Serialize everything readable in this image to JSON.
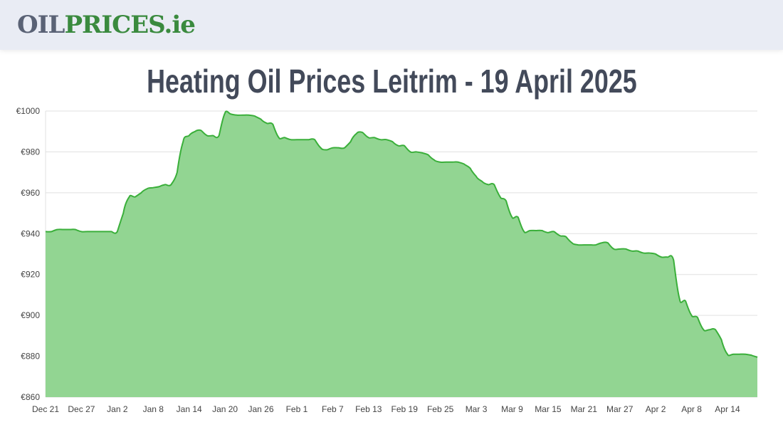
{
  "header": {
    "logo_part1": "OIL",
    "logo_part2": "PRICES.ie"
  },
  "page_title": "Heating Oil Prices Leitrim - 19 April 2025",
  "colors": {
    "line": "#3aaf3a",
    "fill": "#92d592",
    "grid": "#e0e0e0",
    "header_bg": "#e9ecf4",
    "title": "#434a5a"
  },
  "chart_data": {
    "type": "area",
    "title": "",
    "xlabel": "",
    "ylabel": "",
    "ylim": [
      860,
      1000
    ],
    "yticks": [
      "€860",
      "€880",
      "€900",
      "€920",
      "€940",
      "€960",
      "€980",
      "€1000"
    ],
    "ytick_values": [
      860,
      880,
      900,
      920,
      940,
      960,
      980,
      1000
    ],
    "xticks": [
      "Dec 21",
      "Dec 27",
      "Jan 2",
      "Jan 8",
      "Jan 14",
      "Jan 20",
      "Jan 26",
      "Feb 1",
      "Feb 7",
      "Feb 13",
      "Feb 19",
      "Feb 25",
      "Mar 3",
      "Mar 9",
      "Mar 15",
      "Mar 21",
      "Mar 27",
      "Apr 2",
      "Apr 8",
      "Apr 14"
    ],
    "grid": true,
    "legend": "none",
    "x": [
      "Dec 21",
      "Dec 22",
      "Dec 23",
      "Dec 24",
      "Dec 25",
      "Dec 26",
      "Dec 27",
      "Dec 28",
      "Dec 29",
      "Dec 30",
      "Dec 31",
      "Jan 1",
      "Jan 2",
      "Jan 3",
      "Jan 4",
      "Jan 5",
      "Jan 6",
      "Jan 7",
      "Jan 8",
      "Jan 9",
      "Jan 10",
      "Jan 11",
      "Jan 12",
      "Jan 13",
      "Jan 14",
      "Jan 15",
      "Jan 16",
      "Jan 17",
      "Jan 18",
      "Jan 19",
      "Jan 20",
      "Jan 21",
      "Jan 22",
      "Jan 23",
      "Jan 24",
      "Jan 25",
      "Jan 26",
      "Jan 27",
      "Jan 28",
      "Jan 29",
      "Jan 30",
      "Jan 31",
      "Feb 1",
      "Feb 2",
      "Feb 3",
      "Feb 4",
      "Feb 5",
      "Feb 6",
      "Feb 7",
      "Feb 8",
      "Feb 9",
      "Feb 10",
      "Feb 11",
      "Feb 12",
      "Feb 13",
      "Feb 14",
      "Feb 15",
      "Feb 16",
      "Feb 17",
      "Feb 18",
      "Feb 19",
      "Feb 20",
      "Feb 21",
      "Feb 22",
      "Feb 23",
      "Feb 24",
      "Feb 25",
      "Feb 26",
      "Feb 27",
      "Feb 28",
      "Mar 1",
      "Mar 2",
      "Mar 3",
      "Mar 4",
      "Mar 5",
      "Mar 6",
      "Mar 7",
      "Mar 8",
      "Mar 9",
      "Mar 10",
      "Mar 11",
      "Mar 12",
      "Mar 13",
      "Mar 14",
      "Mar 15",
      "Mar 16",
      "Mar 17",
      "Mar 18",
      "Mar 19",
      "Mar 20",
      "Mar 21",
      "Mar 22",
      "Mar 23",
      "Mar 24",
      "Mar 25",
      "Mar 26",
      "Mar 27",
      "Mar 28",
      "Mar 29",
      "Mar 30",
      "Mar 31",
      "Apr 1",
      "Apr 2",
      "Apr 3",
      "Apr 4",
      "Apr 5",
      "Apr 6",
      "Apr 7",
      "Apr 8",
      "Apr 9",
      "Apr 10",
      "Apr 11",
      "Apr 12",
      "Apr 13",
      "Apr 14",
      "Apr 15",
      "Apr 16",
      "Apr 17",
      "Apr 18",
      "Apr 19"
    ],
    "values": [
      941,
      941,
      942,
      942,
      942,
      942,
      941,
      941,
      941,
      941,
      941,
      941,
      941,
      950,
      958,
      958,
      960,
      962,
      962.5,
      963,
      964,
      964,
      970,
      985,
      988,
      990,
      990.5,
      988,
      988,
      988,
      999,
      998.5,
      998,
      998,
      998,
      997.5,
      996,
      994,
      993.5,
      987,
      987,
      986,
      986,
      986,
      986,
      986,
      982,
      981,
      982,
      982,
      982,
      985,
      989,
      989.5,
      987,
      987,
      986,
      986,
      985,
      983,
      983,
      980,
      980,
      979.5,
      978.5,
      976,
      975,
      975,
      975,
      975,
      974,
      972,
      968,
      965.5,
      964,
      964,
      958,
      956,
      948,
      948,
      941,
      941.5,
      941.5,
      941.5,
      940.5,
      941,
      939,
      938.5,
      935.5,
      934.5,
      934.5,
      934.5,
      934.5,
      935.5,
      935.5,
      932.5,
      932.5,
      932.5,
      931.5,
      931.5,
      930.5,
      930.5,
      930,
      928.5,
      928.5,
      927,
      908,
      907,
      900,
      899,
      893,
      893,
      893,
      888,
      881,
      881,
      881,
      881,
      880.5,
      879.5
    ]
  }
}
